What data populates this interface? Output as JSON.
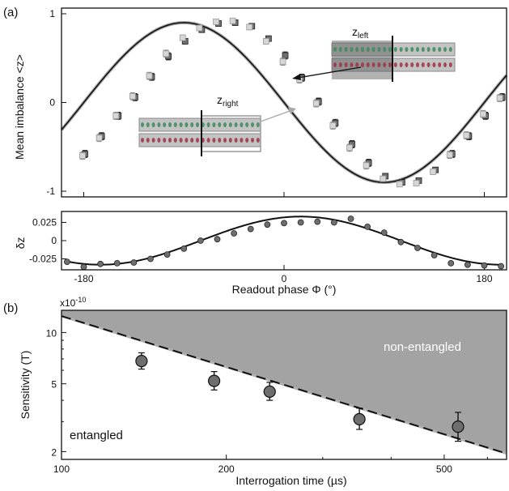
{
  "colors": {
    "fit_black": "#111111",
    "fit_gray": "#a8a8a8",
    "marker_fill": "#d6d6d6",
    "marker_dark": "#6e6e6e",
    "shade": "#a3a3a3",
    "atom_green": "#3b8a5e",
    "atom_red": "#9c3245"
  },
  "chart_data": [
    {
      "id": "panel-a-top",
      "panel_label": "(a)",
      "type": "scatter",
      "ylabel": "Mean imbalance <z>",
      "xlim": [
        -200,
        200
      ],
      "ylim": [
        -1,
        1
      ],
      "y_ticks": [
        -1,
        0,
        1
      ],
      "y_tick_labels": [
        "-1",
        "0",
        "1"
      ],
      "x_ticks": [
        -180,
        0,
        180
      ],
      "fit": {
        "amplitude": 0.9,
        "phase_of_max_deg": -90
      },
      "series": [
        {
          "name": "",
          "role": "z_left",
          "x": [
            -180,
            -165,
            -150,
            -135,
            -120,
            -105,
            -90,
            -75,
            -60,
            -45,
            -30,
            -15,
            0,
            15,
            30,
            45,
            60,
            75,
            90,
            105,
            120,
            135,
            150,
            165,
            180,
            195
          ],
          "y": [
            -0.58,
            -0.38,
            -0.15,
            0.06,
            0.29,
            0.52,
            0.69,
            0.82,
            0.89,
            0.9,
            0.86,
            0.72,
            0.53,
            0.28,
            0.01,
            -0.23,
            -0.47,
            -0.68,
            -0.83,
            -0.9,
            -0.88,
            -0.76,
            -0.58,
            -0.38,
            -0.15,
            0.06
          ],
          "err": [
            0.04,
            0.04,
            0.04,
            0.04,
            0.04,
            0.04,
            0.03,
            0.03,
            0.03,
            0.03,
            0.03,
            0.03,
            0.04,
            0.04,
            0.04,
            0.04,
            0.04,
            0.04,
            0.03,
            0.03,
            0.03,
            0.03,
            0.04,
            0.04,
            0.04,
            0.04
          ]
        },
        {
          "name": "",
          "role": "z_right",
          "x": [
            -180,
            -165,
            -150,
            -135,
            -120,
            -105,
            -90,
            -75,
            -60,
            -45,
            -30,
            -15,
            0,
            15,
            30,
            45,
            60,
            75,
            90,
            105,
            120,
            135,
            150,
            165,
            180,
            195
          ],
          "y": [
            -0.6,
            -0.4,
            -0.15,
            0.07,
            0.3,
            0.55,
            0.73,
            0.84,
            0.91,
            0.92,
            0.85,
            0.69,
            0.46,
            0.26,
            -0.01,
            -0.26,
            -0.51,
            -0.71,
            -0.86,
            -0.92,
            -0.91,
            -0.78,
            -0.59,
            -0.37,
            -0.13,
            0.05
          ],
          "err": [
            0.04,
            0.04,
            0.04,
            0.04,
            0.04,
            0.04,
            0.03,
            0.03,
            0.03,
            0.03,
            0.03,
            0.03,
            0.04,
            0.04,
            0.04,
            0.04,
            0.04,
            0.04,
            0.03,
            0.03,
            0.03,
            0.03,
            0.04,
            0.04,
            0.04,
            0.04
          ]
        }
      ],
      "annotations": [
        {
          "text": "z",
          "subscript": "left"
        },
        {
          "text": "z",
          "subscript": "right"
        }
      ]
    },
    {
      "id": "panel-a-bottom",
      "type": "scatter",
      "ylabel": "δz",
      "xlabel": "Readout phase Φ (°)",
      "xlim": [
        -200,
        200
      ],
      "ylim": [
        -0.04,
        0.04
      ],
      "y_ticks": [
        0.025,
        0,
        -0.025
      ],
      "y_tick_labels": [
        "0.025",
        "0",
        "-0.025"
      ],
      "x_ticks": [
        -180,
        0,
        180
      ],
      "x_tick_labels": [
        "-180",
        "0",
        "180"
      ],
      "fit": {
        "amplitude": 0.033,
        "phase_of_max_deg": 15
      },
      "series": [
        {
          "name": "",
          "x": [
            -195,
            -180,
            -165,
            -150,
            -135,
            -120,
            -105,
            -90,
            -75,
            -60,
            -45,
            -30,
            -15,
            0,
            15,
            30,
            45,
            60,
            75,
            90,
            105,
            120,
            135,
            150,
            165,
            180,
            195
          ],
          "y": [
            -0.029,
            -0.036,
            -0.032,
            -0.031,
            -0.03,
            -0.025,
            -0.019,
            -0.011,
            0.0,
            0.002,
            0.01,
            0.016,
            0.022,
            0.024,
            0.025,
            0.026,
            0.025,
            0.03,
            0.019,
            0.011,
            -0.002,
            -0.01,
            -0.02,
            -0.031,
            -0.033,
            -0.034,
            -0.035
          ],
          "err": [
            0.003,
            0.003,
            0.003,
            0.003,
            0.003,
            0.003,
            0.003,
            0.003,
            0.003,
            0.003,
            0.003,
            0.003,
            0.003,
            0.003,
            0.003,
            0.003,
            0.003,
            0.003,
            0.003,
            0.003,
            0.003,
            0.003,
            0.003,
            0.003,
            0.003,
            0.003,
            0.003
          ]
        }
      ]
    },
    {
      "id": "panel-b",
      "panel_label": "(b)",
      "type": "scatter",
      "xlabel": "Interrogation time (µs)",
      "ylabel": "Sensitivity (T)",
      "x_scale": "log",
      "y_scale": "log",
      "y_multiplier": "x10",
      "y_multiplier_exp": "-10",
      "xlim": [
        100,
        650
      ],
      "ylim": [
        1.8,
        13.5
      ],
      "x_ticks": [
        100,
        200,
        500
      ],
      "x_tick_labels": [
        "100",
        "200",
        "500"
      ],
      "y_ticks": [
        2,
        5,
        10
      ],
      "y_tick_labels": [
        "2",
        "5",
        "10"
      ],
      "series": [
        {
          "name": "",
          "x": [
            140,
            190,
            240,
            350,
            530
          ],
          "y": [
            6.8,
            5.2,
            4.5,
            3.1,
            2.8
          ],
          "err_low": [
            0.7,
            0.6,
            0.5,
            0.4,
            0.5
          ],
          "err_high": [
            0.8,
            0.7,
            0.6,
            0.5,
            0.6
          ]
        }
      ],
      "limit": {
        "x": [
          100,
          650
        ],
        "y": [
          12.5,
          1.95
        ]
      },
      "region_labels": {
        "upper": "non-entangled",
        "lower": "entangled"
      }
    }
  ]
}
